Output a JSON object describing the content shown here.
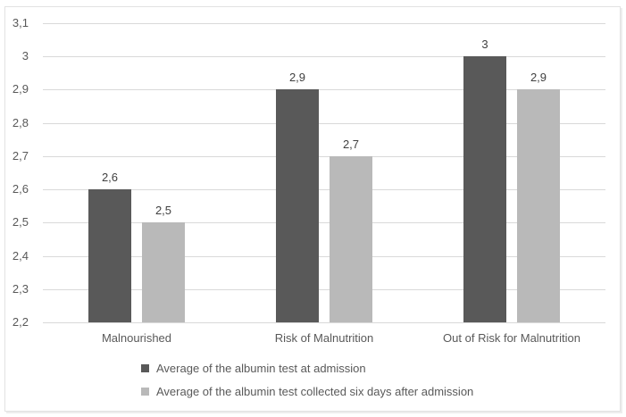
{
  "figure": {
    "background": "#ffffff",
    "border_color": "#e2e2e2"
  },
  "chart_data": {
    "type": "bar",
    "title": "",
    "xlabel": "",
    "ylabel": "",
    "categories": [
      "Malnourished",
      "Risk of Malnutrition",
      "Out of Risk for Malnutrition"
    ],
    "series": [
      {
        "name": "Average of the albumin test at admission",
        "color": "#595959",
        "values": [
          2.6,
          2.9,
          3
        ],
        "labels": [
          "2,6",
          "2,9",
          "3"
        ]
      },
      {
        "name": "Average of the albumin test collected six days after admission",
        "color": "#b9b9b9",
        "values": [
          2.5,
          2.7,
          2.9
        ],
        "labels": [
          "2,5",
          "2,7",
          "2,9"
        ]
      }
    ],
    "y_axis": {
      "min": 2.2,
      "max": 3.1,
      "step": 0.1,
      "tick_values": [
        3.1,
        3.0,
        2.9,
        2.8,
        2.7,
        2.6,
        2.5,
        2.4,
        2.3,
        2.2
      ],
      "tick_labels": [
        "3,1",
        "3",
        "2,9",
        "2,8",
        "2,7",
        "2,6",
        "2,5",
        "2,4",
        "2,3",
        "2,2"
      ]
    },
    "grid": true,
    "gridline_color": "#d9d9d9",
    "legend_position": "bottom-left",
    "decimal_separator": ",",
    "text_colors": {
      "axis": "#595959",
      "data_label": "#404040"
    }
  }
}
